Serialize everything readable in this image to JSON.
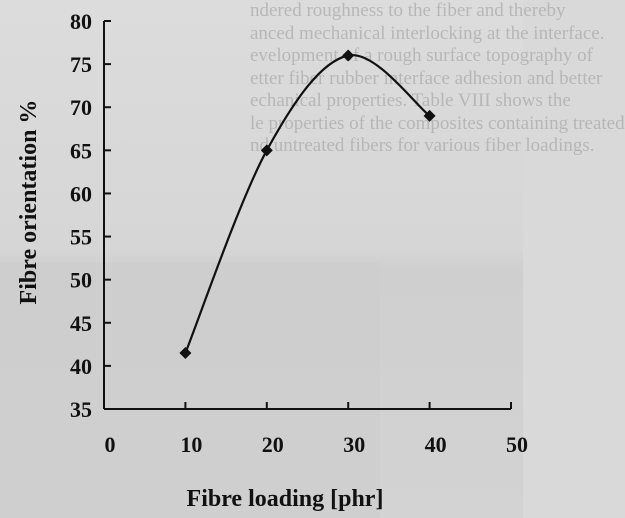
{
  "background_text": [
    "ndered roughness to the fiber and thereby",
    "anced mechanical interlocking at the interface.",
    "evelopment of a rough surface topography of",
    "etter fiber rubber interface adhesion and better",
    "echanical properties. Table VIII shows the",
    "le properties of the composites containing treated",
    "nd untreated fibers for various fiber loadings."
  ],
  "chart_data": {
    "type": "line",
    "title": "",
    "xlabel": "Fibre loading [phr]",
    "ylabel": "Fibre orientation %",
    "xlim": [
      0,
      50
    ],
    "ylim": [
      35,
      80
    ],
    "x_ticks": [
      "0",
      "10",
      "20",
      "30",
      "40",
      "50"
    ],
    "y_ticks": [
      "35",
      "40",
      "45",
      "50",
      "55",
      "60",
      "65",
      "70",
      "75",
      "80"
    ],
    "grid": false,
    "legend": "none",
    "line_color": "#111111",
    "series": [
      {
        "x": [
          10,
          20,
          30,
          40
        ],
        "y": [
          41.5,
          65,
          76,
          69
        ]
      }
    ]
  }
}
